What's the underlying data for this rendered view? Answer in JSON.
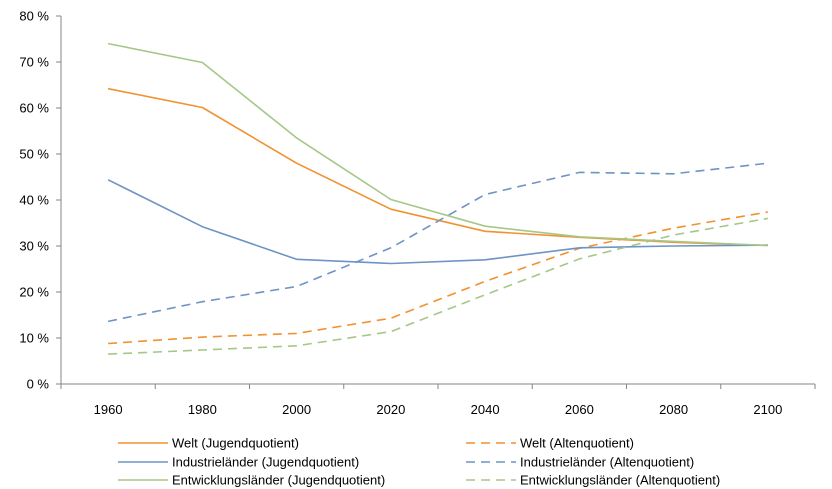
{
  "chart_data": {
    "type": "line",
    "x": [
      1960,
      1980,
      2000,
      2020,
      2040,
      2060,
      2080,
      2100
    ],
    "x_tick_labels": [
      "1960",
      "1980",
      "2000",
      "2020",
      "2040",
      "2060",
      "2080",
      "2100"
    ],
    "y_tick_labels": [
      "0 %",
      "10 %",
      "20 %",
      "30 %",
      "40 %",
      "50 %",
      "60 %",
      "70 %",
      "80 %"
    ],
    "ylim": [
      0,
      80
    ],
    "xlim": [
      1950,
      2110
    ],
    "grid": false,
    "legend_placement": "bottom",
    "series": [
      {
        "name": "Welt (Jugendquotient)",
        "color": "#F0922F",
        "dash": "solid",
        "values": [
          64.2,
          60.1,
          48.0,
          38.0,
          33.2,
          31.9,
          30.8,
          30.1
        ]
      },
      {
        "name": "Welt (Altenquotient)",
        "color": "#F0922F",
        "dash": "dashed",
        "values": [
          8.8,
          10.2,
          11.0,
          14.3,
          22.3,
          29.5,
          33.9,
          37.4
        ]
      },
      {
        "name": "Industrieländer (Jugendquotient)",
        "color": "#6E93C4",
        "dash": "solid",
        "values": [
          44.4,
          34.2,
          27.1,
          26.2,
          27.0,
          29.6,
          30.0,
          30.2
        ]
      },
      {
        "name": "Industrieländer (Altenquotient)",
        "color": "#6E93C4",
        "dash": "dashed",
        "values": [
          13.6,
          17.9,
          21.2,
          29.6,
          41.2,
          46.0,
          45.7,
          48.0
        ]
      },
      {
        "name": "Entwicklungsländer (Jugendquotient)",
        "color": "#A5C788",
        "dash": "solid",
        "values": [
          74.0,
          69.9,
          53.5,
          40.1,
          34.3,
          32.0,
          31.0,
          30.1
        ]
      },
      {
        "name": "Entwicklungsländer (Altenquotient)",
        "color": "#A5C788",
        "dash": "dashed",
        "values": [
          6.5,
          7.4,
          8.3,
          11.4,
          19.4,
          27.2,
          32.4,
          36.0
        ]
      }
    ]
  }
}
